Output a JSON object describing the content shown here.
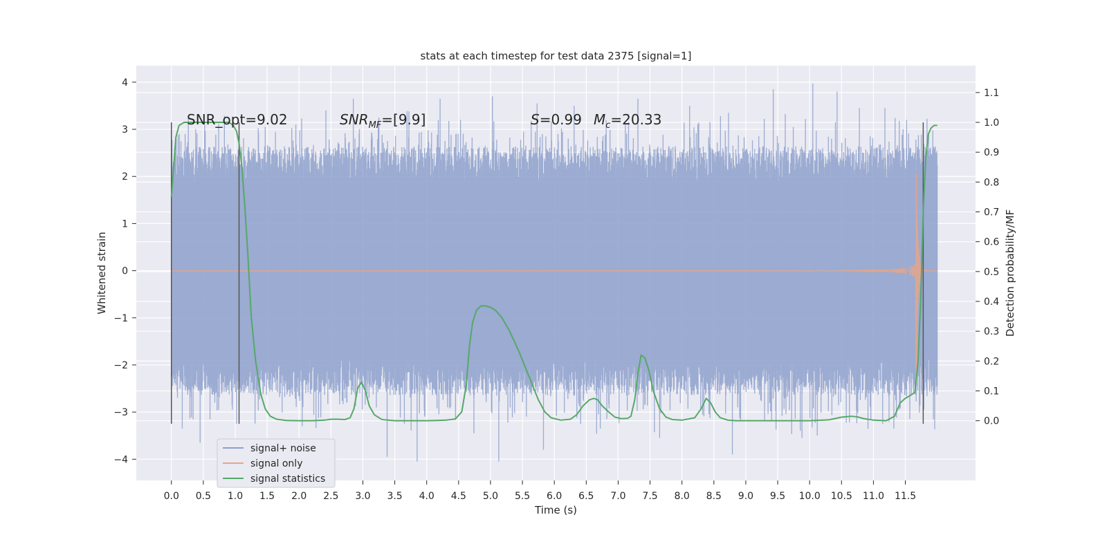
{
  "chart_data": {
    "type": "line",
    "title": "stats at each timestep for test data 2375 [signal=1]",
    "xlabel": "Time (s)",
    "ylabel": "Whitened strain",
    "y2label": "Detection probability/MF",
    "xlim": [
      -0.55,
      12.6
    ],
    "ylim": [
      -4.45,
      4.35
    ],
    "y2lim": [
      -0.2,
      1.19
    ],
    "grid": true,
    "legend_location": "lower-left",
    "x_ticks": [
      0.0,
      0.5,
      1.0,
      1.5,
      2.0,
      2.5,
      3.0,
      3.5,
      4.0,
      4.5,
      5.0,
      5.5,
      6.0,
      6.5,
      7.0,
      7.5,
      8.0,
      8.5,
      9.0,
      9.5,
      10.0,
      10.5,
      11.0,
      11.5
    ],
    "x_tick_labels": [
      "0.0",
      "0.5",
      "1.0",
      "1.5",
      "2.0",
      "2.5",
      "3.0",
      "3.5",
      "4.0",
      "4.5",
      "5.0",
      "5.5",
      "6.0",
      "6.5",
      "7.0",
      "7.5",
      "8.0",
      "8.5",
      "9.0",
      "9.5",
      "10.0",
      "10.5",
      "11.0",
      "11.5"
    ],
    "y_ticks": [
      4,
      3,
      2,
      1,
      0,
      -1,
      -2,
      -3,
      -4
    ],
    "y_tick_labels": [
      "4",
      "3",
      "2",
      "1",
      "0",
      "−1",
      "−2",
      "−3",
      "−4"
    ],
    "y2_ticks": [
      1.1,
      1.0,
      0.9,
      0.8,
      0.7,
      0.6,
      0.5,
      0.4,
      0.3,
      0.2,
      0.1,
      0.0
    ],
    "y2_tick_labels": [
      "1.1",
      "1.0",
      "0.9",
      "0.8",
      "0.7",
      "0.6",
      "0.5",
      "0.4",
      "0.3",
      "0.2",
      "0.1",
      "0.0"
    ],
    "annotations": {
      "snr_opt": "SNR_opt=9.02",
      "snr_mf_main": "SNR",
      "snr_mf_sub": "MF",
      "snr_mf_rest": "=[9.9]",
      "s_main": "S",
      "s_rest": "=0.99",
      "mc_main": "M",
      "mc_sub": "c",
      "mc_rest": "=20.33"
    },
    "vertical_lines": [
      {
        "x": 0.0,
        "y2_range": [
          -0.01,
          1.0
        ]
      },
      {
        "x": 1.06,
        "y2_range": [
          -0.01,
          1.0
        ]
      },
      {
        "x": 11.78,
        "y2_range": [
          -0.01,
          1.0
        ]
      }
    ],
    "series": [
      {
        "name": "signal+ noise",
        "axis": "left",
        "color": "#8da0cb",
        "time_range": [
          0.0,
          12.0
        ],
        "envelope_typical": 2.2,
        "peaks": [
          {
            "x": 0.52,
            "y": 3.1
          },
          {
            "x": 0.17,
            "y": -3.35
          },
          {
            "x": 0.45,
            "y": -3.65
          },
          {
            "x": 1.47,
            "y": 3.05
          },
          {
            "x": 1.95,
            "y": 3.1
          },
          {
            "x": 2.05,
            "y": -3.3
          },
          {
            "x": 2.85,
            "y": 3.65
          },
          {
            "x": 3.38,
            "y": -3.95
          },
          {
            "x": 3.65,
            "y": -3.25
          },
          {
            "x": 3.85,
            "y": -4.05
          },
          {
            "x": 4.21,
            "y": 3.65
          },
          {
            "x": 4.53,
            "y": 3.2
          },
          {
            "x": 4.74,
            "y": -3.45
          },
          {
            "x": 5.03,
            "y": 3.7
          },
          {
            "x": 5.13,
            "y": -4.05
          },
          {
            "x": 5.73,
            "y": 3.55
          },
          {
            "x": 5.83,
            "y": -3.8
          },
          {
            "x": 6.31,
            "y": 3.5
          },
          {
            "x": 6.72,
            "y": -3.35
          },
          {
            "x": 7.31,
            "y": 3.65
          },
          {
            "x": 7.65,
            "y": -3.55
          },
          {
            "x": 8.12,
            "y": 3.5
          },
          {
            "x": 8.73,
            "y": 3.35
          },
          {
            "x": 8.79,
            "y": -3.9
          },
          {
            "x": 9.43,
            "y": 3.85
          },
          {
            "x": 9.88,
            "y": -3.55
          },
          {
            "x": 10.05,
            "y": 3.97
          },
          {
            "x": 10.12,
            "y": -3.5
          },
          {
            "x": 10.43,
            "y": 3.8
          },
          {
            "x": 10.78,
            "y": 3.45
          },
          {
            "x": 11.18,
            "y": 3.45
          },
          {
            "x": 11.32,
            "y": -3.35
          },
          {
            "x": 11.52,
            "y": 3.2
          }
        ]
      },
      {
        "name": "signal only",
        "axis": "left",
        "color": "#e5a58a",
        "time_range": [
          0.0,
          12.0
        ],
        "chirp_peak": {
          "x": 11.68,
          "y_max": 2.05,
          "y_min": -2.2
        }
      },
      {
        "name": "signal statistics",
        "axis": "right",
        "color": "#55a868",
        "x": [
          0.0,
          0.07,
          0.12,
          0.2,
          0.3,
          0.45,
          0.6,
          0.8,
          0.9,
          0.97,
          1.02,
          1.06,
          1.1,
          1.15,
          1.2,
          1.25,
          1.32,
          1.4,
          1.47,
          1.55,
          1.65,
          1.8,
          2.0,
          2.2,
          2.4,
          2.5,
          2.62,
          2.72,
          2.8,
          2.86,
          2.92,
          2.98,
          3.04,
          3.1,
          3.18,
          3.3,
          3.5,
          4.0,
          4.3,
          4.45,
          4.55,
          4.62,
          4.67,
          4.72,
          4.78,
          4.85,
          4.92,
          5.0,
          5.08,
          5.18,
          5.3,
          5.45,
          5.6,
          5.75,
          5.85,
          5.95,
          6.1,
          6.25,
          6.35,
          6.45,
          6.55,
          6.62,
          6.68,
          6.75,
          6.85,
          6.95,
          7.05,
          7.15,
          7.2,
          7.26,
          7.31,
          7.36,
          7.42,
          7.48,
          7.55,
          7.65,
          7.75,
          7.85,
          8.0,
          8.2,
          8.3,
          8.38,
          8.45,
          8.52,
          8.6,
          8.72,
          8.85,
          9.1,
          9.5,
          10.0,
          10.3,
          10.5,
          10.65,
          10.75,
          10.85,
          11.0,
          11.2,
          11.33,
          11.42,
          11.5,
          11.58,
          11.65,
          11.7,
          11.74,
          11.78,
          11.82,
          11.86,
          11.9,
          11.95,
          12.0
        ],
        "y": [
          0.75,
          0.95,
          0.99,
          1.0,
          1.0,
          1.0,
          1.0,
          1.0,
          1.0,
          0.99,
          0.97,
          0.93,
          0.86,
          0.72,
          0.55,
          0.35,
          0.2,
          0.09,
          0.04,
          0.015,
          0.005,
          0.001,
          0.0,
          0.0,
          0.002,
          0.005,
          0.005,
          0.004,
          0.01,
          0.04,
          0.11,
          0.13,
          0.1,
          0.05,
          0.02,
          0.004,
          0.0,
          0.0,
          0.002,
          0.006,
          0.03,
          0.12,
          0.25,
          0.33,
          0.37,
          0.385,
          0.385,
          0.38,
          0.37,
          0.345,
          0.3,
          0.23,
          0.15,
          0.07,
          0.03,
          0.01,
          0.002,
          0.005,
          0.02,
          0.05,
          0.07,
          0.075,
          0.07,
          0.05,
          0.03,
          0.012,
          0.007,
          0.008,
          0.015,
          0.07,
          0.16,
          0.22,
          0.21,
          0.17,
          0.1,
          0.04,
          0.012,
          0.004,
          0.002,
          0.01,
          0.04,
          0.075,
          0.06,
          0.03,
          0.01,
          0.002,
          0.0,
          0.0,
          0.0,
          0.0,
          0.003,
          0.012,
          0.015,
          0.013,
          0.007,
          0.002,
          0.0,
          0.015,
          0.06,
          0.075,
          0.085,
          0.095,
          0.2,
          0.4,
          0.7,
          0.88,
          0.96,
          0.98,
          0.99,
          0.99
        ]
      }
    ]
  }
}
